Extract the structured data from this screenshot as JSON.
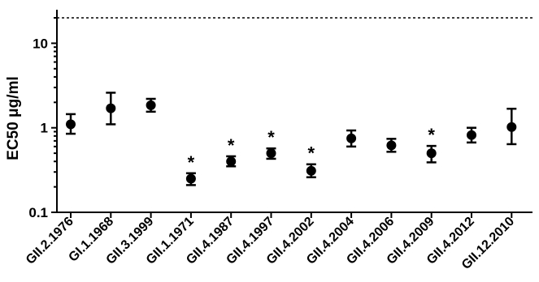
{
  "chart_data": {
    "type": "scatter",
    "ylabel": "EC50 μg/ml",
    "yscale": "log",
    "ylim": [
      0.1,
      20
    ],
    "yticks": [
      {
        "value": 0.1,
        "label": "0.1"
      },
      {
        "value": 1,
        "label": "1"
      },
      {
        "value": 10,
        "label": "10"
      }
    ],
    "reference_line": {
      "y": 20,
      "style": "dashed"
    },
    "significance_marker": "*",
    "categories": [
      "GII.2.1976",
      "GI.1.1968",
      "GII.3.1999",
      "GII.1.1971",
      "GII.4.1987",
      "GII.4.1997",
      "GII.4.2002",
      "GII.4.2004",
      "GII.4.2006",
      "GII.4.2009",
      "GII.4.2012",
      "GII.12.2010"
    ],
    "series": [
      {
        "values": [
          1.1,
          1.7,
          1.85,
          0.25,
          0.4,
          0.5,
          0.31,
          0.75,
          0.62,
          0.5,
          0.82,
          1.02
        ],
        "err_low": [
          0.85,
          1.1,
          1.55,
          0.21,
          0.35,
          0.43,
          0.26,
          0.6,
          0.52,
          0.39,
          0.67,
          0.64
        ],
        "err_high": [
          1.45,
          2.6,
          2.2,
          0.29,
          0.46,
          0.57,
          0.37,
          0.93,
          0.74,
          0.61,
          1.0,
          1.68
        ],
        "significant": [
          false,
          false,
          false,
          true,
          true,
          true,
          true,
          false,
          false,
          true,
          false,
          false
        ]
      }
    ],
    "grid": false,
    "legend": "none"
  }
}
